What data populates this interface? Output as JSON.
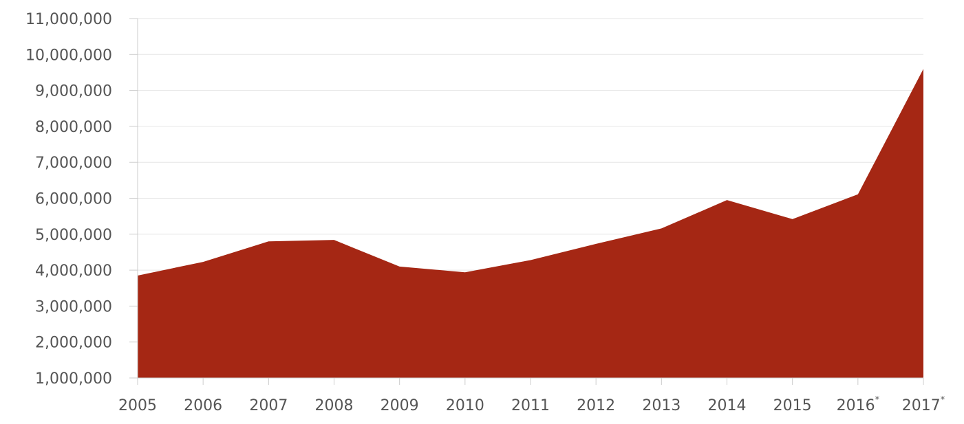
{
  "chart_data": {
    "type": "area",
    "x": [
      "2005",
      "2006",
      "2007",
      "2008",
      "2009",
      "2010",
      "2011",
      "2012",
      "2013",
      "2014",
      "2015",
      "2016",
      "2017"
    ],
    "x_markers": [
      "",
      "",
      "",
      "",
      "",
      "",
      "",
      "",
      "",
      "",
      "",
      "*",
      "*"
    ],
    "series": [
      {
        "values": [
          3850000,
          4230000,
          4800000,
          4840000,
          4100000,
          3940000,
          4280000,
          4730000,
          5160000,
          5950000,
          5420000,
          6110000,
          9600000
        ]
      }
    ],
    "yticks": [
      "1,000,000",
      "2,000,000",
      "3,000,000",
      "4,000,000",
      "5,000,000",
      "6,000,000",
      "7,000,000",
      "8,000,000",
      "9,000,000",
      "10,000,000",
      "11,000,000"
    ],
    "ylim": [
      1000000,
      11000000
    ],
    "grid": true,
    "colors": {
      "fill": "#a52714",
      "grid": "#e6e6e6",
      "axis": "#cccccc",
      "text": "#555555"
    }
  }
}
